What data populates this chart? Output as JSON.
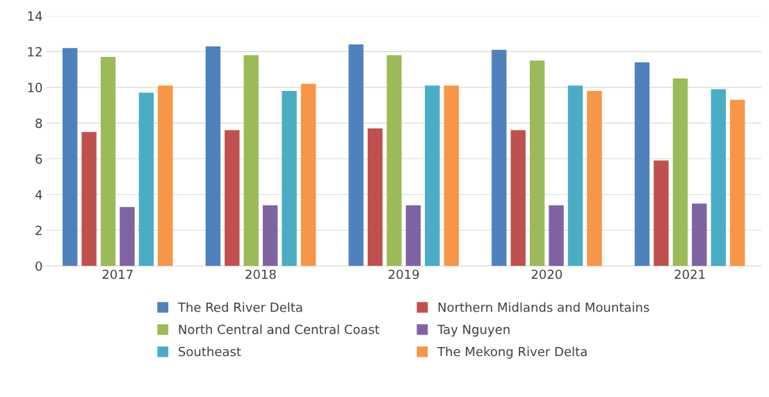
{
  "chart_data": {
    "type": "bar",
    "categories": [
      "2017",
      "2018",
      "2019",
      "2020",
      "2021"
    ],
    "series": [
      {
        "name": "The Red River Delta",
        "color": "#4f81bd",
        "values": [
          12.2,
          12.3,
          12.4,
          12.1,
          11.4
        ]
      },
      {
        "name": "Northern Midlands and Mountains",
        "color": "#c0504d",
        "values": [
          7.5,
          7.6,
          7.7,
          7.6,
          5.9
        ]
      },
      {
        "name": "North Central and Central Coast",
        "color": "#9bbb59",
        "values": [
          11.7,
          11.8,
          11.8,
          11.5,
          10.5
        ]
      },
      {
        "name": "Tay Nguyen",
        "color": "#8064a2",
        "values": [
          3.3,
          3.4,
          3.4,
          3.4,
          3.5
        ]
      },
      {
        "name": "Southeast",
        "color": "#4bacc6",
        "values": [
          9.7,
          9.8,
          10.1,
          10.1,
          9.9
        ]
      },
      {
        "name": "The Mekong River Delta",
        "color": "#f79646",
        "values": [
          10.1,
          10.2,
          10.1,
          9.8,
          9.3
        ]
      }
    ],
    "ylim": [
      0,
      14
    ],
    "yticks": [
      0,
      2,
      4,
      6,
      8,
      10,
      12,
      14
    ],
    "grid": "y",
    "legend": "bottom"
  }
}
